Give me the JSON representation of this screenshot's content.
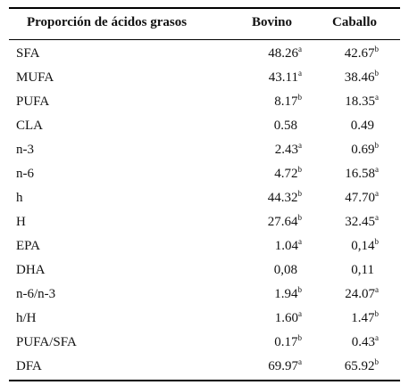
{
  "table": {
    "header": [
      "Proporción de ácidos grasos",
      "Bovino",
      "Caballo"
    ],
    "rows": [
      {
        "label": "SFA",
        "bovino": {
          "value": "48.26",
          "sup": "a"
        },
        "caballo": {
          "value": "42.67",
          "sup": "b"
        }
      },
      {
        "label": "MUFA",
        "bovino": {
          "value": "43.11",
          "sup": "a"
        },
        "caballo": {
          "value": "38.46",
          "sup": "b"
        }
      },
      {
        "label": "PUFA",
        "bovino": {
          "value": "8.17",
          "sup": "b"
        },
        "caballo": {
          "value": "18.35",
          "sup": "a"
        }
      },
      {
        "label": "CLA",
        "bovino": {
          "value": "0.58"
        },
        "caballo": {
          "value": "0.49"
        }
      },
      {
        "label": "n-3",
        "bovino": {
          "value": "2.43",
          "sup": "a"
        },
        "caballo": {
          "value": "0.69",
          "sup": "b"
        }
      },
      {
        "label": "n-6",
        "bovino": {
          "value": "4.72",
          "sup": "b"
        },
        "caballo": {
          "value": "16.58",
          "sup": "a"
        }
      },
      {
        "label": "h",
        "bovino": {
          "value": "44.32",
          "sup": "b"
        },
        "caballo": {
          "value": "47.70",
          "sup": "a"
        }
      },
      {
        "label": "H",
        "bovino": {
          "value": "27.64",
          "sup": "b"
        },
        "caballo": {
          "value": "32.45",
          "sup": "a"
        }
      },
      {
        "label": "EPA",
        "bovino": {
          "value": "1.04",
          "sup": "a"
        },
        "caballo": {
          "value": "0,14",
          "sup": "b"
        }
      },
      {
        "label": "DHA",
        "bovino": {
          "value": "0,08"
        },
        "caballo": {
          "value": "0,11"
        }
      },
      {
        "label": "n-6/n-3",
        "bovino": {
          "value": "1.94",
          "sup": "b"
        },
        "caballo": {
          "value": "24.07",
          "sup": "a"
        }
      },
      {
        "label": "h/H",
        "bovino": {
          "value": "1.60",
          "sup": "a"
        },
        "caballo": {
          "value": "1.47",
          "sup": "b"
        }
      },
      {
        "label": "PUFA/SFA",
        "bovino": {
          "value": "0.17",
          "sup": "b"
        },
        "caballo": {
          "value": "0.43",
          "sup": "a"
        }
      },
      {
        "label": "DFA",
        "bovino": {
          "value": "69.97",
          "sup": "a"
        },
        "caballo": {
          "value": "65.92",
          "sup": "b"
        }
      }
    ]
  }
}
